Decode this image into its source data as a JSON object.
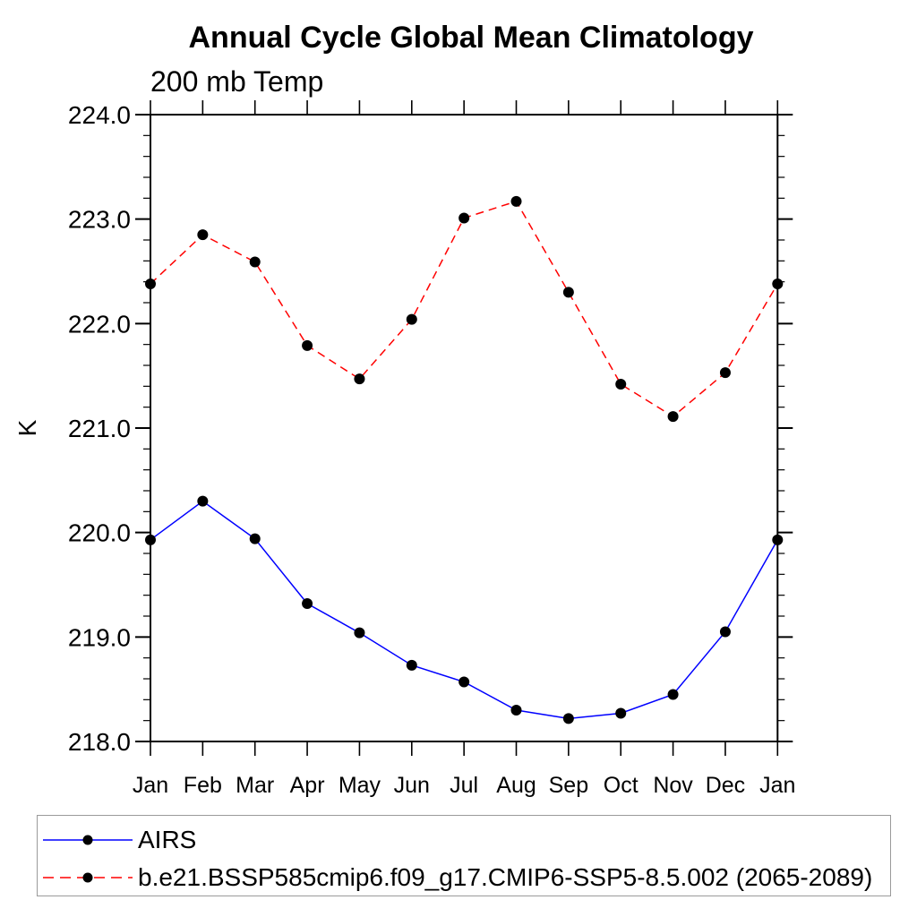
{
  "chart_data": {
    "type": "line",
    "title": "Annual Cycle Global Mean Climatology",
    "subtitle": "200 mb Temp",
    "ylabel": "K",
    "ylim": [
      218.0,
      224.0
    ],
    "yticks": [
      "218.0",
      "219.0",
      "220.0",
      "221.0",
      "222.0",
      "223.0",
      "224.0"
    ],
    "ytick_minor_step": 0.2,
    "grid": false,
    "legend_position": "bottom-left-box",
    "categories": [
      "Jan",
      "Feb",
      "Mar",
      "Apr",
      "May",
      "Jun",
      "Jul",
      "Aug",
      "Sep",
      "Oct",
      "Nov",
      "Dec",
      "Jan"
    ],
    "series": [
      {
        "name": "AIRS",
        "line_color": "#0000ff",
        "line_style": "solid",
        "marker": "filled-circle",
        "marker_color": "#000000",
        "values": [
          219.93,
          220.3,
          219.94,
          219.32,
          219.04,
          218.73,
          218.57,
          218.3,
          218.22,
          218.27,
          218.45,
          219.05,
          219.93
        ]
      },
      {
        "name": "b.e21.BSSP585cmip6.f09_g17.CMIP6-SSP5-8.5.002 (2065-2089)",
        "line_color": "#ff0000",
        "line_style": "dashed",
        "marker": "filled-circle",
        "marker_color": "#000000",
        "values": [
          222.38,
          222.85,
          222.59,
          221.79,
          221.47,
          222.04,
          223.01,
          223.17,
          222.3,
          221.42,
          221.11,
          221.53,
          222.38
        ]
      }
    ]
  }
}
